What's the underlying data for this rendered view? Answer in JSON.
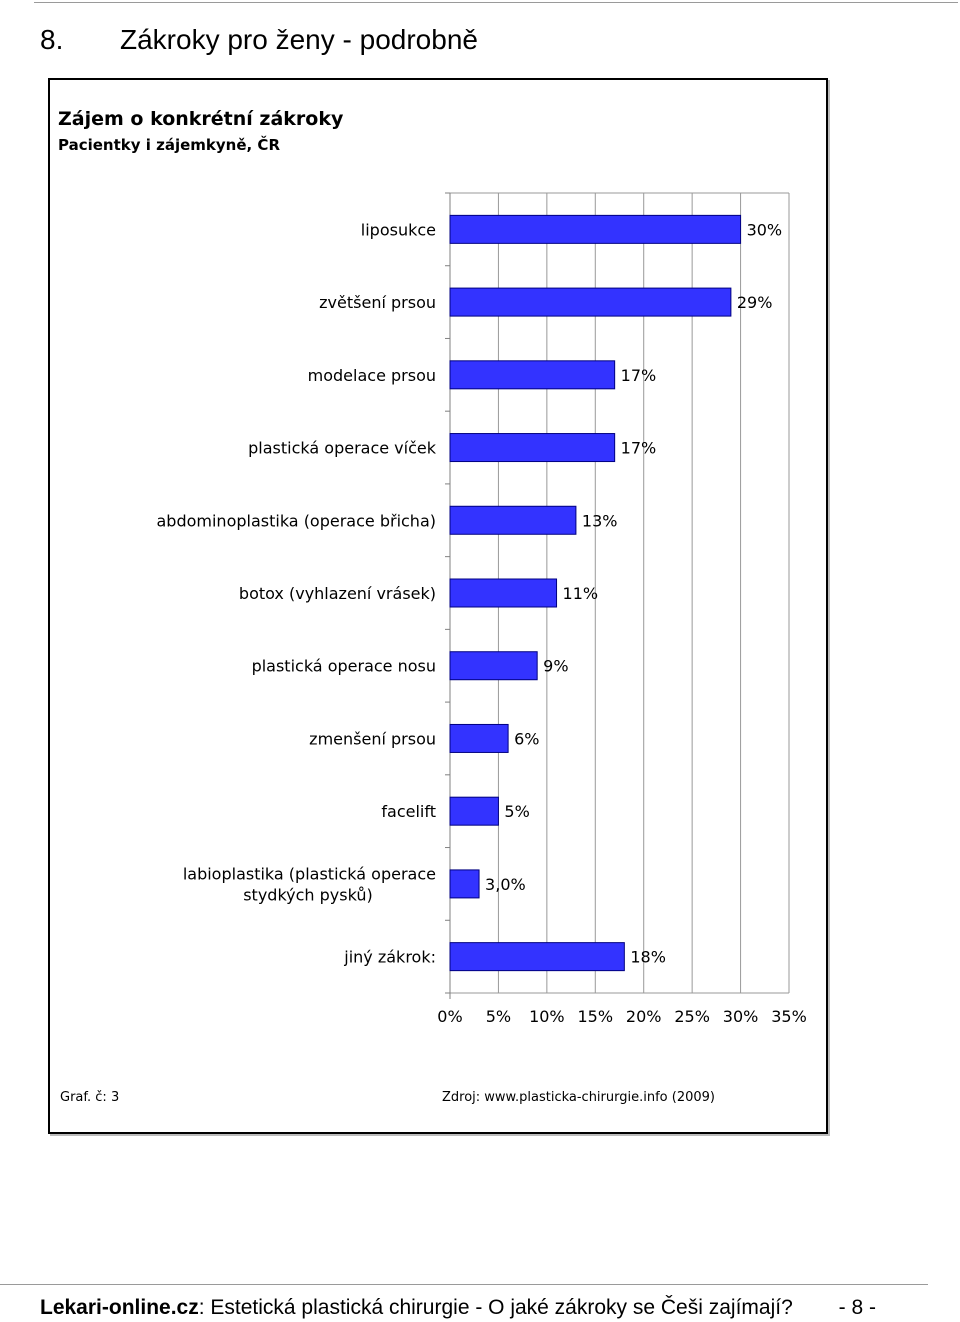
{
  "page": {
    "section_number": "8.",
    "section_title": "Zákroky pro ženy - podrobně"
  },
  "chart_data": {
    "type": "bar",
    "orientation": "horizontal",
    "title": "Zájem o konkrétní zákroky",
    "subtitle": "Pacientky i zájemkyně, ČR",
    "categories": [
      "liposukce",
      "zvětšení prsou",
      "modelace prsou",
      "plastická operace víček",
      "abdominoplastika (operace břicha)",
      "botox (vyhlazení vrásek)",
      "plastická operace nosu",
      "zmenšení prsou",
      "facelift",
      "labioplastika (plastická operace stydkých pysků)",
      "jiný zákrok:"
    ],
    "values": [
      30,
      29,
      17,
      17,
      13,
      11,
      9,
      6,
      5,
      3,
      18
    ],
    "value_labels": [
      "30%",
      "29%",
      "17%",
      "17%",
      "13%",
      "11%",
      "9%",
      "6%",
      "5%",
      "3,0%",
      "18%"
    ],
    "xlim": [
      0,
      35
    ],
    "x_ticks": [
      "0%",
      "5%",
      "10%",
      "15%",
      "20%",
      "25%",
      "30%",
      "35%"
    ],
    "xlabel": "",
    "ylabel": "",
    "grid": true,
    "legend": "none",
    "bar_color": "#3333ff",
    "bar_border_color": "#000080",
    "grid_color": "#999999"
  },
  "notes": {
    "graf": "Graf. č: 3",
    "source": "Zdroj: www.plasticka-chirurgie.info (2009)"
  },
  "footer": {
    "site": "Lekari-online.cz",
    "text": ": Estetická plastická chirurgie - O jaké zákroky se Češi zajímají?",
    "page_number": "- 8 -"
  }
}
